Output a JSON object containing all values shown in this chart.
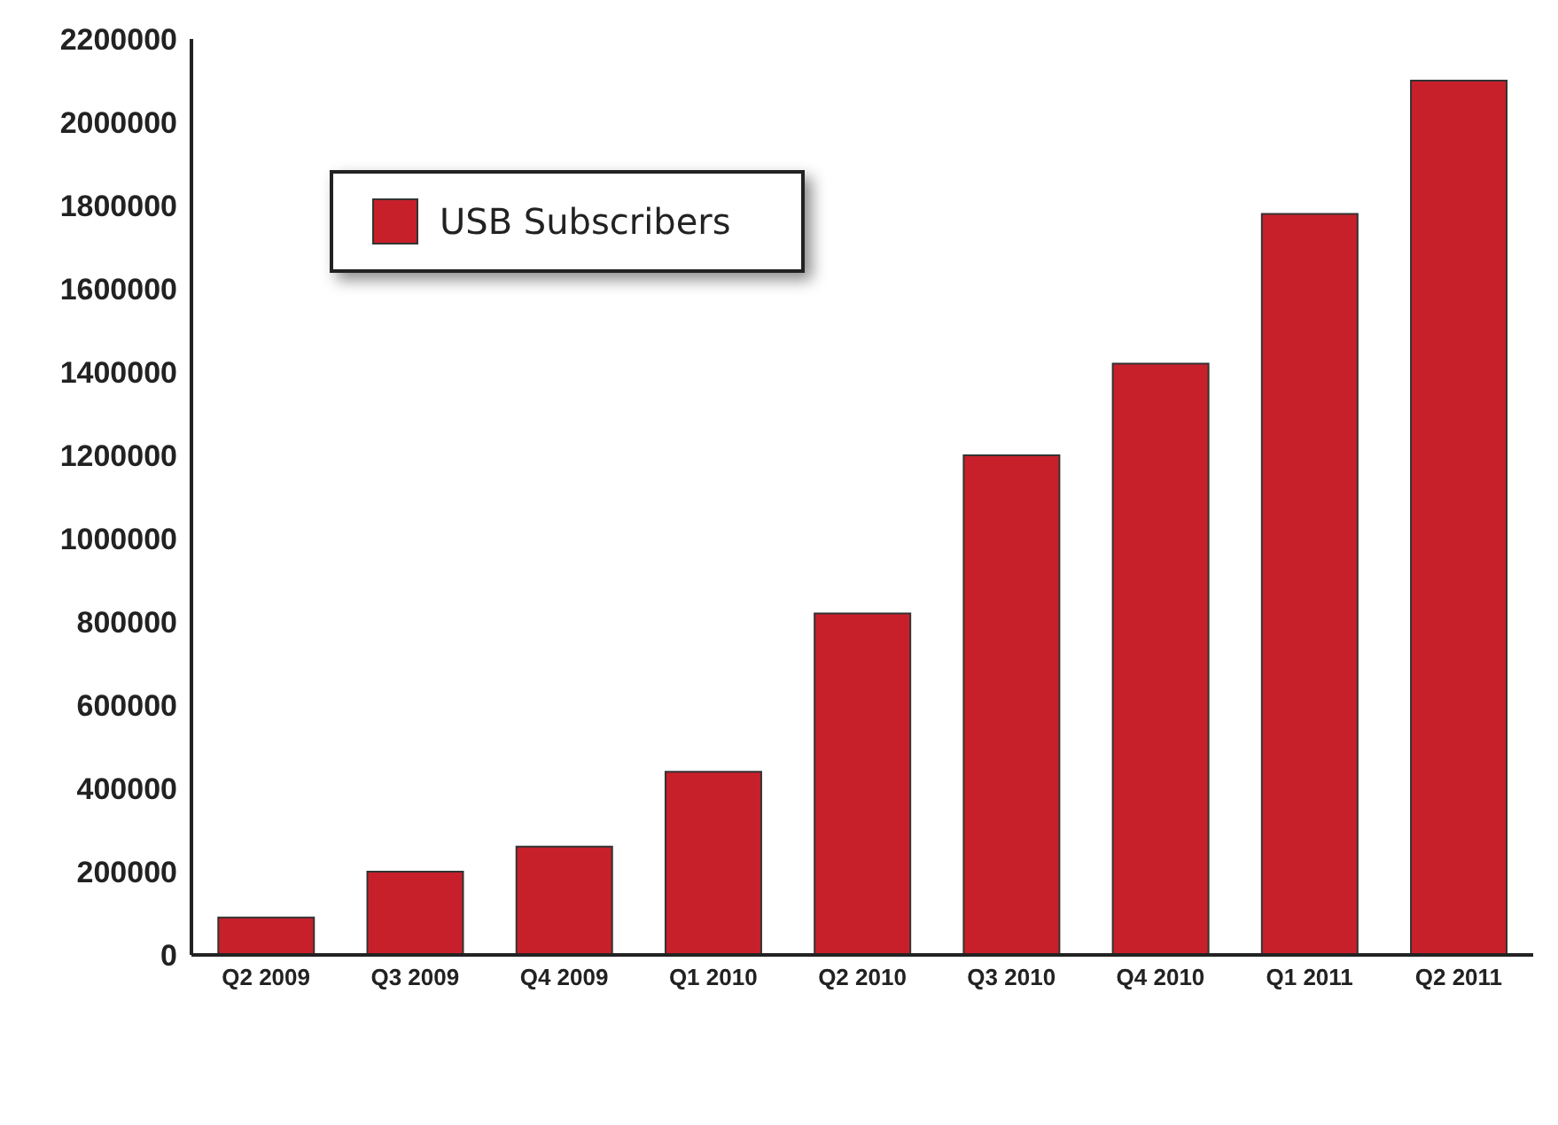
{
  "chart_data": {
    "type": "bar",
    "categories": [
      "Q2 2009",
      "Q3 2009",
      "Q4 2009",
      "Q1 2010",
      "Q2 2010",
      "Q3 2010",
      "Q4 2010",
      "Q1 2011",
      "Q2 2011"
    ],
    "series": [
      {
        "name": "USB Subscribers",
        "color": "#c8202a",
        "values": [
          90000,
          200000,
          260000,
          440000,
          820000,
          1200000,
          1420000,
          1780000,
          2100000
        ]
      }
    ],
    "ylim": [
      0,
      2200000
    ],
    "yticks": [
      0,
      200000,
      400000,
      600000,
      800000,
      1000000,
      1200000,
      1400000,
      1600000,
      1800000,
      2000000,
      2200000
    ],
    "legend": "top left"
  }
}
